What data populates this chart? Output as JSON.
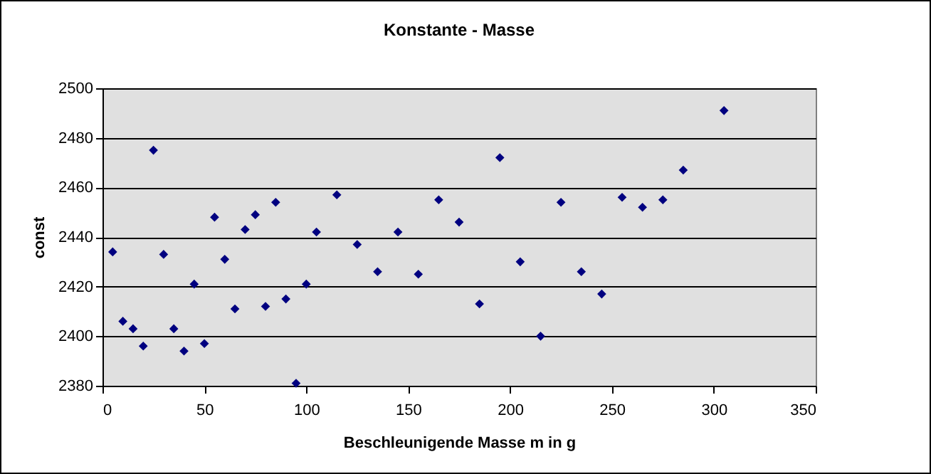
{
  "chart_data": {
    "type": "scatter",
    "title": "Konstante - Masse",
    "xlabel": "Beschleunigende Masse m in g",
    "ylabel": "const",
    "x": [
      5,
      10,
      15,
      20,
      25,
      30,
      35,
      40,
      45,
      50,
      55,
      60,
      65,
      70,
      75,
      80,
      85,
      90,
      95,
      100,
      105,
      115,
      125,
      135,
      145,
      155,
      165,
      175,
      185,
      195,
      205,
      215,
      225,
      235,
      245,
      255,
      265,
      275,
      285,
      305
    ],
    "series": [
      {
        "color": "#000080",
        "values": [
          2434,
          2406,
          2403,
          2396,
          2475,
          2433,
          2403,
          2394,
          2421,
          2397,
          2448,
          2431,
          2411,
          2443,
          2449,
          2412,
          2454,
          2415,
          2381,
          2421,
          2442,
          2457,
          2437,
          2426,
          2442,
          2425,
          2455,
          2446,
          2413,
          2472,
          2430,
          2400,
          2454,
          2426,
          2417,
          2456,
          2452,
          2455,
          2467,
          2491
        ]
      }
    ],
    "xlim": [
      0,
      350
    ],
    "xticks": [
      0,
      50,
      100,
      150,
      200,
      250,
      300,
      350
    ],
    "ylim": [
      2380,
      2500
    ],
    "yticks": [
      2380,
      2400,
      2420,
      2440,
      2460,
      2480,
      2500
    ],
    "grid": "y",
    "marker": "diamond",
    "legend": false
  }
}
